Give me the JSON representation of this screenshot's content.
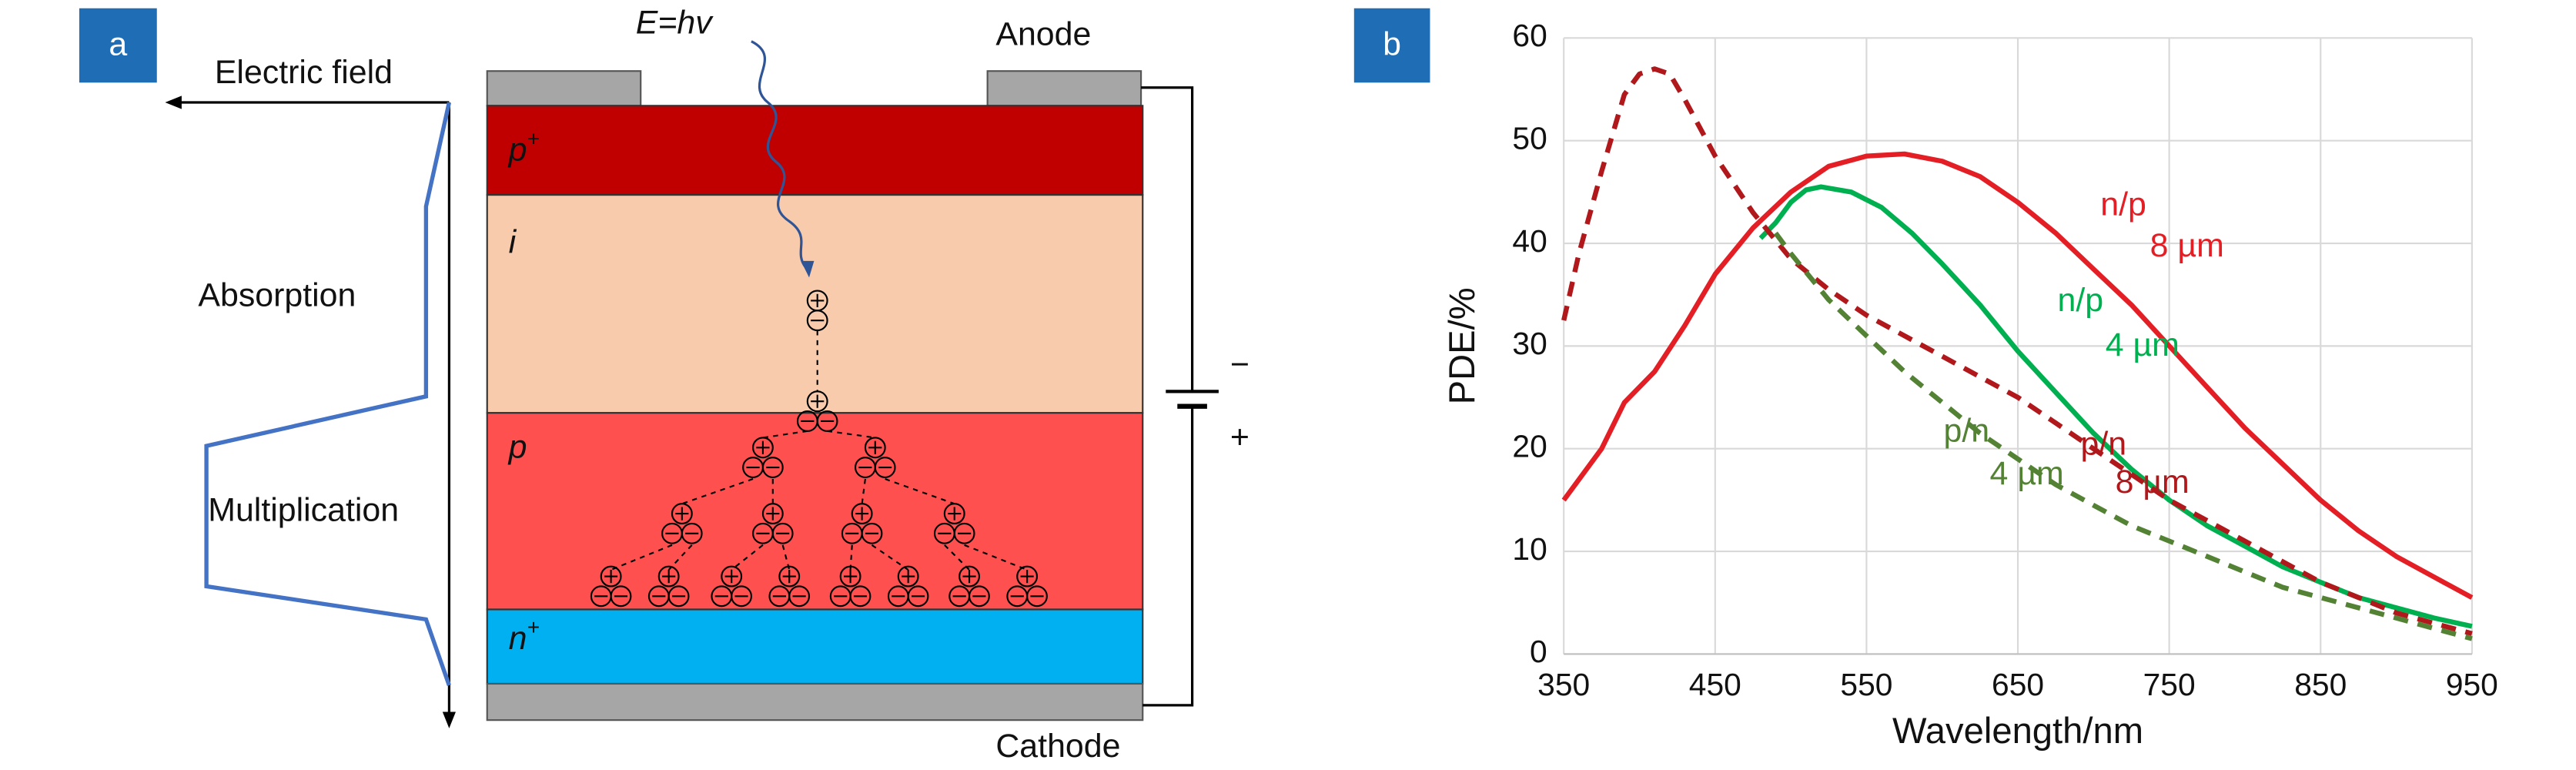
{
  "panel_a": {
    "label": "a",
    "anode": "Anode",
    "cathode": "Cathode",
    "photon": "E=hv",
    "electric_field": "Electric field",
    "absorption": "Absorption",
    "multiplication": "Multiplication",
    "layers": [
      {
        "base": "p",
        "sup": "+"
      },
      {
        "base": "i"
      },
      {
        "base": "p"
      },
      {
        "base": "n",
        "sup": "+"
      }
    ],
    "minus": "−",
    "plus": "+"
  },
  "chart_data": {
    "type": "line",
    "panel_label": "b",
    "xlabel": "Wavelength/nm",
    "ylabel": "PDE/%",
    "xlim": [
      350,
      950
    ],
    "xticks": [
      350,
      450,
      550,
      650,
      750,
      850,
      950
    ],
    "ylim": [
      0,
      60
    ],
    "yticks": [
      0,
      10,
      20,
      30,
      40,
      50,
      60
    ],
    "grid": true,
    "series": [
      {
        "label": [
          "n/p",
          "8 µm"
        ],
        "color": "#e31e24",
        "dashed": false,
        "x": [
          350,
          375,
          390,
          410,
          430,
          450,
          475,
          500,
          525,
          550,
          575,
          600,
          625,
          650,
          675,
          700,
          725,
          750,
          775,
          800,
          825,
          850,
          875,
          900,
          925,
          950
        ],
        "values": [
          15,
          20,
          24.5,
          27.5,
          32,
          37,
          41.5,
          45,
          47.5,
          48.5,
          48.7,
          48,
          46.5,
          44,
          41,
          37.5,
          34,
          30,
          26,
          22,
          18.5,
          15,
          12,
          9.5,
          7.5,
          5.5
        ]
      },
      {
        "label": [
          "n/p",
          "4 µm"
        ],
        "color": "#00b050",
        "dashed": false,
        "x": [
          480,
          490,
          500,
          510,
          520,
          540,
          560,
          580,
          600,
          625,
          650,
          675,
          700,
          725,
          750,
          775,
          800,
          825,
          850,
          875,
          900,
          925,
          950
        ],
        "values": [
          40.5,
          42,
          44,
          45.2,
          45.5,
          45,
          43.5,
          41,
          38,
          34,
          29.5,
          25.5,
          21.5,
          18,
          15,
          12.5,
          10.5,
          8.5,
          7,
          5.5,
          4.5,
          3.5,
          2.7
        ]
      },
      {
        "label": [
          "p/n",
          "8 µm"
        ],
        "color": "#b0181b",
        "dashed": true,
        "x": [
          350,
          360,
          375,
          390,
          400,
          410,
          420,
          430,
          450,
          475,
          500,
          525,
          550,
          575,
          600,
          625,
          650,
          675,
          700,
          725,
          750,
          775,
          800,
          825,
          850,
          875,
          900,
          925,
          950
        ],
        "values": [
          32.5,
          39,
          47,
          54.5,
          56.5,
          57,
          56.5,
          54,
          48.5,
          43,
          38.5,
          35.5,
          33,
          31,
          29,
          27,
          25,
          22.5,
          20,
          17.5,
          15,
          13,
          11,
          9,
          7,
          5.5,
          4,
          3,
          2
        ]
      },
      {
        "label": [
          "p/n",
          "4 µm"
        ],
        "color": "#548235",
        "dashed": true,
        "x": [
          490,
          500,
          525,
          550,
          575,
          600,
          625,
          650,
          675,
          700,
          725,
          750,
          775,
          800,
          825,
          850,
          875,
          900,
          925,
          950
        ],
        "values": [
          41,
          39,
          34.5,
          31,
          27.5,
          24.5,
          21.5,
          19,
          16.5,
          14.5,
          12.5,
          11,
          9.5,
          8,
          6.5,
          5.5,
          4.5,
          3.5,
          2.5,
          1.5
        ]
      }
    ]
  }
}
